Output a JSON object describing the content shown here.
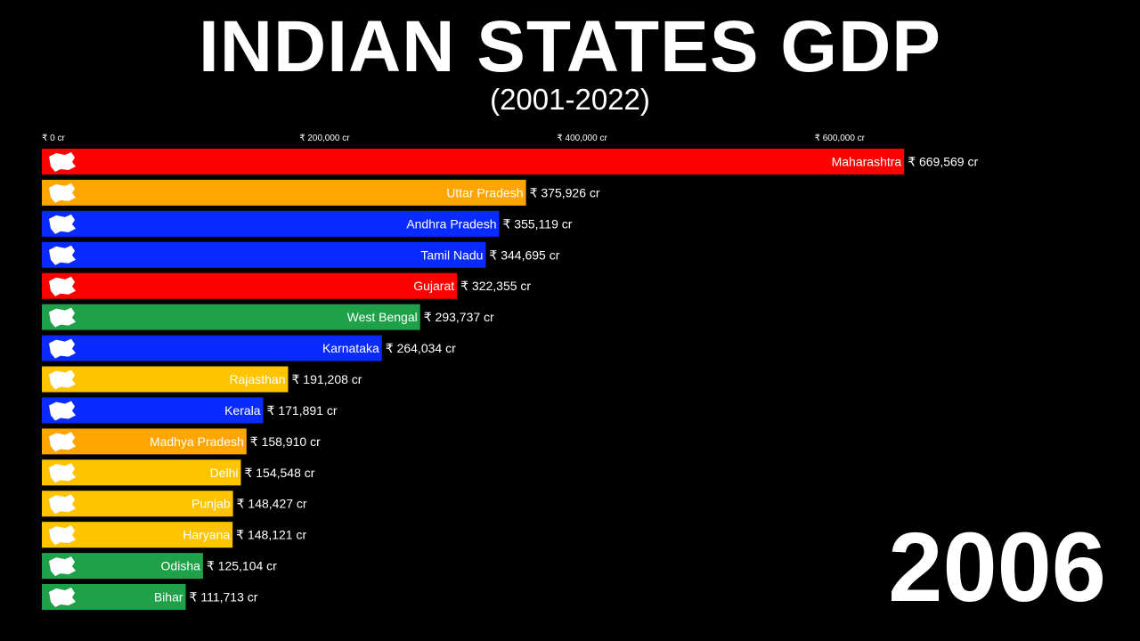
{
  "header": {
    "title": "INDIAN STATES GDP",
    "subtitle": "(2001-2022)"
  },
  "year": "2006",
  "chart_data": {
    "type": "bar",
    "orientation": "horizontal",
    "title": "INDIAN STATES GDP",
    "subtitle": "(2001-2022)",
    "xlim": [
      0,
      680000
    ],
    "ticks": [
      {
        "value": 0,
        "label": "₹ 0 cr"
      },
      {
        "value": 200000,
        "label": "₹ 200,000 cr"
      },
      {
        "value": 400000,
        "label": "₹ 400,000 cr"
      },
      {
        "value": 600000,
        "label": "₹ 600,000 cr"
      }
    ],
    "bars": [
      {
        "category": "Maharashtra",
        "value": 669569,
        "value_label": "₹ 669,569 cr",
        "color": "#ff0000"
      },
      {
        "category": "Uttar Pradesh",
        "value": 375926,
        "value_label": "₹ 375,926 cr",
        "color": "#ffa500"
      },
      {
        "category": "Andhra Pradesh",
        "value": 355119,
        "value_label": "₹ 355,119 cr",
        "color": "#0a2bff"
      },
      {
        "category": "Tamil Nadu",
        "value": 344695,
        "value_label": "₹ 344,695 cr",
        "color": "#0a2bff"
      },
      {
        "category": "Gujarat",
        "value": 322355,
        "value_label": "₹ 322,355 cr",
        "color": "#ff0000"
      },
      {
        "category": "West Bengal",
        "value": 293737,
        "value_label": "₹ 293,737 cr",
        "color": "#1fa149"
      },
      {
        "category": "Karnataka",
        "value": 264034,
        "value_label": "₹ 264,034 cr",
        "color": "#0a2bff"
      },
      {
        "category": "Rajasthan",
        "value": 191208,
        "value_label": "₹ 191,208 cr",
        "color": "#ffc400"
      },
      {
        "category": "Kerala",
        "value": 171891,
        "value_label": "₹ 171,891 cr",
        "color": "#0a2bff"
      },
      {
        "category": "Madhya Pradesh",
        "value": 158910,
        "value_label": "₹ 158,910 cr",
        "color": "#ffa500"
      },
      {
        "category": "Delhi",
        "value": 154548,
        "value_label": "₹ 154,548 cr",
        "color": "#ffc400"
      },
      {
        "category": "Punjab",
        "value": 148427,
        "value_label": "₹ 148,427 cr",
        "color": "#ffc400"
      },
      {
        "category": "Haryana",
        "value": 148121,
        "value_label": "₹ 148,121 cr",
        "color": "#ffc400"
      },
      {
        "category": "Odisha",
        "value": 125104,
        "value_label": "₹ 125,104 cr",
        "color": "#1fa149"
      },
      {
        "category": "Bihar",
        "value": 111713,
        "value_label": "₹ 111,713 cr",
        "color": "#1fa149"
      }
    ]
  }
}
